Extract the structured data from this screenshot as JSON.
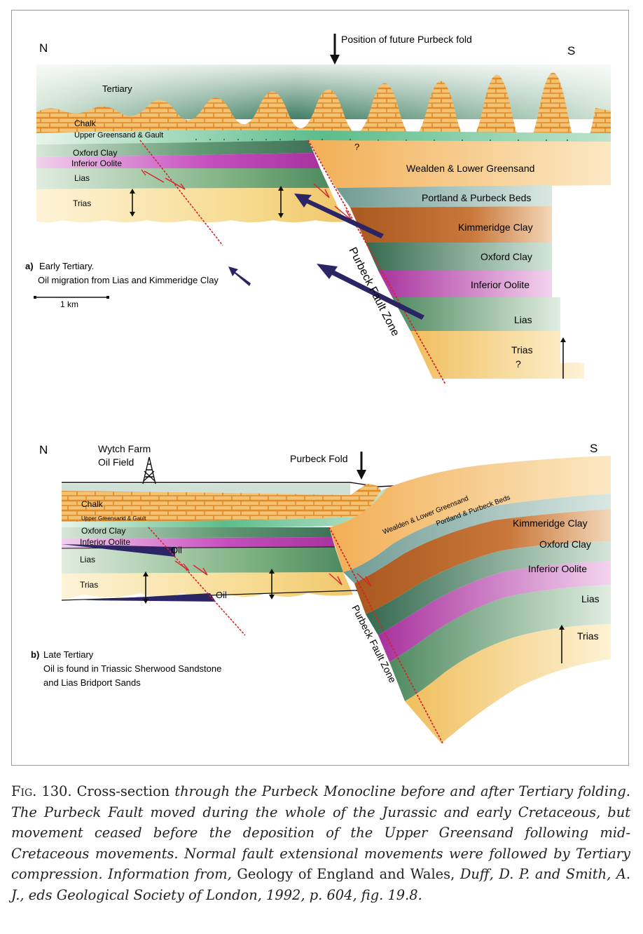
{
  "panel_a": {
    "north": "N",
    "south": "S",
    "fold_label": "Position of future Purbeck fold",
    "strata_left": {
      "tertiary": "Tertiary",
      "chalk": "Chalk",
      "greensand_gault": "Upper Greensand & Gault",
      "oxford_clay": "Oxford Clay",
      "inferior_oolite": "Inferior Oolite",
      "lias": "Lias",
      "trias": "Trias"
    },
    "strata_right": {
      "wealden": "Wealden & Lower Greensand",
      "portland": "Portland & Purbeck Beds",
      "kimmeridge": "Kimmeridge Clay",
      "oxford_clay": "Oxford Clay",
      "inferior_oolite": "Inferior Oolite",
      "lias": "Lias",
      "trias": "Trias"
    },
    "question_mark_top": "?",
    "question_mark_bottom": "?",
    "fault_zone": "Purbeck Fault Zone",
    "caption_letter": "a)",
    "caption_title": "Early Tertiary.",
    "caption_text": "Oil migration from Lias and Kimmeridge Clay",
    "scale_label": "1 km"
  },
  "panel_b": {
    "north": "N",
    "south": "S",
    "oil_field": [
      "Wytch Farm",
      "Oil Field"
    ],
    "fold_label": "Purbeck Fold",
    "strata_left": {
      "chalk": "Chalk",
      "greensand_gault": "Upper Greensand & Gault",
      "oxford_clay": "Oxford Clay",
      "inferior_oolite": "Inferior Oolite",
      "lias": "Lias",
      "trias": "Trias"
    },
    "oil_upper": "Oil",
    "oil_lower": "Oil",
    "strata_right": {
      "wealden": "Wealden & Lower Greensand",
      "portland": "Portland & Purbeck Beds",
      "kimmeridge": "Kimmeridge Clay",
      "oxford_clay": "Oxford Clay",
      "inferior_oolite": "Inferior Oolite",
      "lias": "Lias",
      "trias": "Trias"
    },
    "fault_zone": "Purbeck Fault Zone",
    "caption_letter": "b)",
    "caption_title": "Late Tertiary",
    "caption_lines": [
      "Oil is found in Triassic Sherwood Sandstone",
      "and Lias Bridport Sands"
    ]
  },
  "caption": {
    "fig_label": "Fig.",
    "fig_number": "130.",
    "lead": "Cross-section",
    "part1": "through the Purbeck Monocline before and after Tertiary folding. The Purbeck Fault moved during the whole of the Jurassic and early Cretaceous, but movement ceased before the deposition of the Upper Greensand following mid-Cretaceous movements. Normal fault extensional movements were followed by Tertiary compression. Information from,",
    "book": "Geology of England and Wales,",
    "part2": "Duff, D. P. and Smith, A. J., eds Geological Society of London, 1992, p. 604, fig. 19.8."
  },
  "colors": {
    "tertiary": "#3f7d62",
    "chalk": "#f3c373",
    "chalk_brick": "#e08a2a",
    "greensand": "#5bbd8b",
    "oxford_clay": "#5f9872",
    "inferior_oolite": "#c64fbf",
    "lias": "#79ae7d",
    "trias": "#f6d98c",
    "wealden": "#f2ae55",
    "portland": "#7fa8a0",
    "kimmeridge": "#bd6a2f",
    "fault": "#d8232a",
    "migration_arrow": "#2c2565",
    "oil": "#2c2565"
  }
}
